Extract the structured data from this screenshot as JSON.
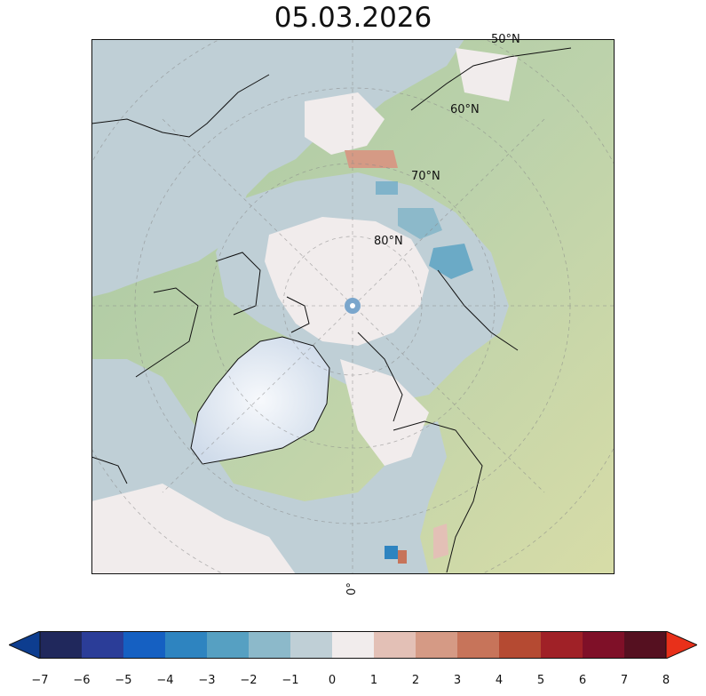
{
  "title": "05.03.2026",
  "map": {
    "lat_labels": [
      "50°N",
      "60°N",
      "70°N",
      "80°N"
    ],
    "lon_label": "0°"
  },
  "colorbar": {
    "ticks": [
      "−7",
      "−6",
      "−5",
      "−4",
      "−3",
      "−2",
      "−1",
      "0",
      "1",
      "2",
      "3",
      "4",
      "5",
      "6",
      "7",
      "8"
    ],
    "colors": [
      "#20285c",
      "#2b3d98",
      "#1560c2",
      "#2e84c0",
      "#56a0c2",
      "#8cb9ca",
      "#bfcfd6",
      "#f1ecec",
      "#e3c0b6",
      "#d59a85",
      "#c7745a",
      "#b54a32",
      "#a02127",
      "#7f1028",
      "#551020"
    ],
    "under_color": "#0d3d8f",
    "over_color": "#e8301a"
  }
}
